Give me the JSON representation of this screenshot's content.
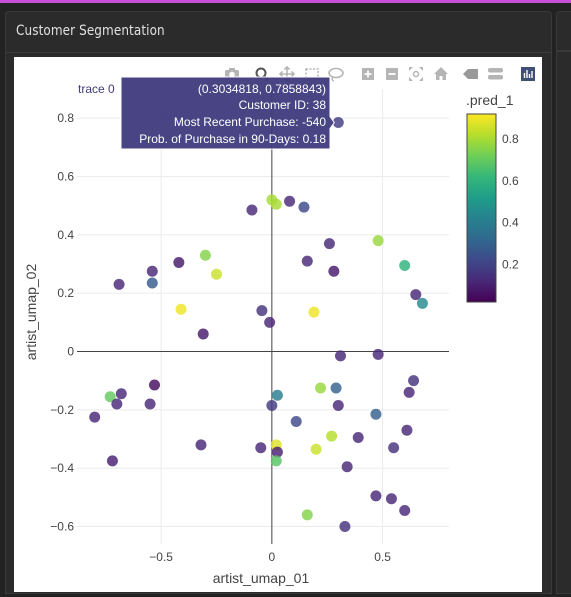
{
  "panel": {
    "title": "Customer Segmentation"
  },
  "modebar": {
    "icons": [
      "camera-icon",
      "zoom-icon",
      "pan-icon",
      "box-select-icon",
      "lasso-icon",
      "zoom-in-icon",
      "zoom-out-icon",
      "autoscale-icon",
      "reset-axes-icon",
      "spike-lines-icon",
      "compare-hover-icon",
      "plotly-logo-icon"
    ]
  },
  "chart_data": {
    "type": "scatter",
    "xlabel": "artist_umap_01",
    "ylabel": "artist_umap_02",
    "xlim": [
      -0.88,
      0.8
    ],
    "ylim": [
      -0.66,
      0.9
    ],
    "xticks": [
      -0.5,
      0,
      0.5
    ],
    "xtick_labels": [
      "−0.5",
      "0",
      "0.5"
    ],
    "yticks": [
      -0.6,
      -0.4,
      -0.2,
      0,
      0.2,
      0.4,
      0.6,
      0.8
    ],
    "ytick_labels": [
      "−0.6",
      "−0.4",
      "−0.2",
      "0",
      "0.2",
      "0.4",
      "0.6",
      "0.8"
    ],
    "grid": true,
    "zeroline": true,
    "colorscale": "viridis",
    "colorbar": {
      "title": ".pred_1",
      "range": [
        0.02,
        0.92
      ],
      "ticks": [
        0.2,
        0.4,
        0.6,
        0.8
      ],
      "tick_labels": [
        "0.2",
        "0.4",
        "0.6",
        "0.8"
      ]
    },
    "points": [
      {
        "x": -0.8,
        "y": -0.225,
        "c": 0.12
      },
      {
        "x": -0.72,
        "y": -0.375,
        "c": 0.1
      },
      {
        "x": -0.73,
        "y": -0.155,
        "c": 0.7
      },
      {
        "x": -0.7,
        "y": -0.18,
        "c": 0.12
      },
      {
        "x": -0.68,
        "y": -0.145,
        "c": 0.12
      },
      {
        "x": -0.69,
        "y": 0.23,
        "c": 0.12
      },
      {
        "x": -0.54,
        "y": 0.275,
        "c": 0.12
      },
      {
        "x": -0.54,
        "y": 0.235,
        "c": 0.28
      },
      {
        "x": -0.53,
        "y": -0.115,
        "c": 0.05
      },
      {
        "x": -0.55,
        "y": -0.18,
        "c": 0.12
      },
      {
        "x": -0.42,
        "y": 0.305,
        "c": 0.08
      },
      {
        "x": -0.41,
        "y": 0.145,
        "c": 0.9
      },
      {
        "x": -0.3,
        "y": 0.33,
        "c": 0.75
      },
      {
        "x": -0.25,
        "y": 0.265,
        "c": 0.85
      },
      {
        "x": -0.31,
        "y": 0.06,
        "c": 0.08
      },
      {
        "x": -0.32,
        "y": -0.32,
        "c": 0.12
      },
      {
        "x": -0.09,
        "y": 0.485,
        "c": 0.12
      },
      {
        "x": 0.0,
        "y": 0.52,
        "c": 0.8
      },
      {
        "x": 0.02,
        "y": 0.505,
        "c": 0.8
      },
      {
        "x": 0.08,
        "y": 0.515,
        "c": 0.12
      },
      {
        "x": 0.145,
        "y": 0.495,
        "c": 0.22
      },
      {
        "x": -0.045,
        "y": 0.14,
        "c": 0.15
      },
      {
        "x": -0.01,
        "y": 0.1,
        "c": 0.12
      },
      {
        "x": 0.16,
        "y": 0.31,
        "c": 0.12
      },
      {
        "x": 0.19,
        "y": 0.135,
        "c": 0.9
      },
      {
        "x": 0.26,
        "y": 0.37,
        "c": 0.12
      },
      {
        "x": 0.28,
        "y": 0.275,
        "c": 0.08
      },
      {
        "x": 0.3,
        "y": 0.785,
        "c": 0.18
      },
      {
        "x": 0.48,
        "y": 0.38,
        "c": 0.78
      },
      {
        "x": 0.6,
        "y": 0.295,
        "c": 0.6
      },
      {
        "x": 0.65,
        "y": 0.195,
        "c": 0.12
      },
      {
        "x": 0.68,
        "y": 0.165,
        "c": 0.45
      },
      {
        "x": 0.31,
        "y": -0.015,
        "c": 0.12
      },
      {
        "x": 0.48,
        "y": -0.01,
        "c": 0.12
      },
      {
        "x": 0.64,
        "y": -0.1,
        "c": 0.15
      },
      {
        "x": 0.62,
        "y": -0.14,
        "c": 0.12
      },
      {
        "x": 0.22,
        "y": -0.125,
        "c": 0.78
      },
      {
        "x": 0.29,
        "y": -0.125,
        "c": 0.3
      },
      {
        "x": 0.3,
        "y": -0.185,
        "c": 0.12
      },
      {
        "x": 0.025,
        "y": -0.15,
        "c": 0.4
      },
      {
        "x": 0.0,
        "y": -0.185,
        "c": 0.18
      },
      {
        "x": 0.11,
        "y": -0.24,
        "c": 0.22
      },
      {
        "x": 0.47,
        "y": -0.215,
        "c": 0.3
      },
      {
        "x": 0.61,
        "y": -0.27,
        "c": 0.12
      },
      {
        "x": 0.39,
        "y": -0.295,
        "c": 0.12
      },
      {
        "x": 0.55,
        "y": -0.33,
        "c": 0.15
      },
      {
        "x": -0.05,
        "y": -0.33,
        "c": 0.12
      },
      {
        "x": 0.02,
        "y": -0.32,
        "c": 0.88
      },
      {
        "x": 0.025,
        "y": -0.345,
        "c": 0.1
      },
      {
        "x": 0.02,
        "y": -0.375,
        "c": 0.68
      },
      {
        "x": 0.2,
        "y": -0.335,
        "c": 0.85
      },
      {
        "x": 0.27,
        "y": -0.29,
        "c": 0.82
      },
      {
        "x": 0.34,
        "y": -0.395,
        "c": 0.12
      },
      {
        "x": 0.47,
        "y": -0.495,
        "c": 0.12
      },
      {
        "x": 0.54,
        "y": -0.505,
        "c": 0.12
      },
      {
        "x": 0.6,
        "y": -0.545,
        "c": 0.12
      },
      {
        "x": 0.16,
        "y": -0.56,
        "c": 0.75
      },
      {
        "x": 0.33,
        "y": -0.6,
        "c": 0.15
      }
    ],
    "hover": {
      "trace_label": "trace 0",
      "lines": [
        "(0.3034818, 0.7858843)",
        "Customer ID: 38",
        "Most Recent Purchase: -540",
        "Prob. of Purchase in 90-Days: 0.18"
      ]
    }
  }
}
